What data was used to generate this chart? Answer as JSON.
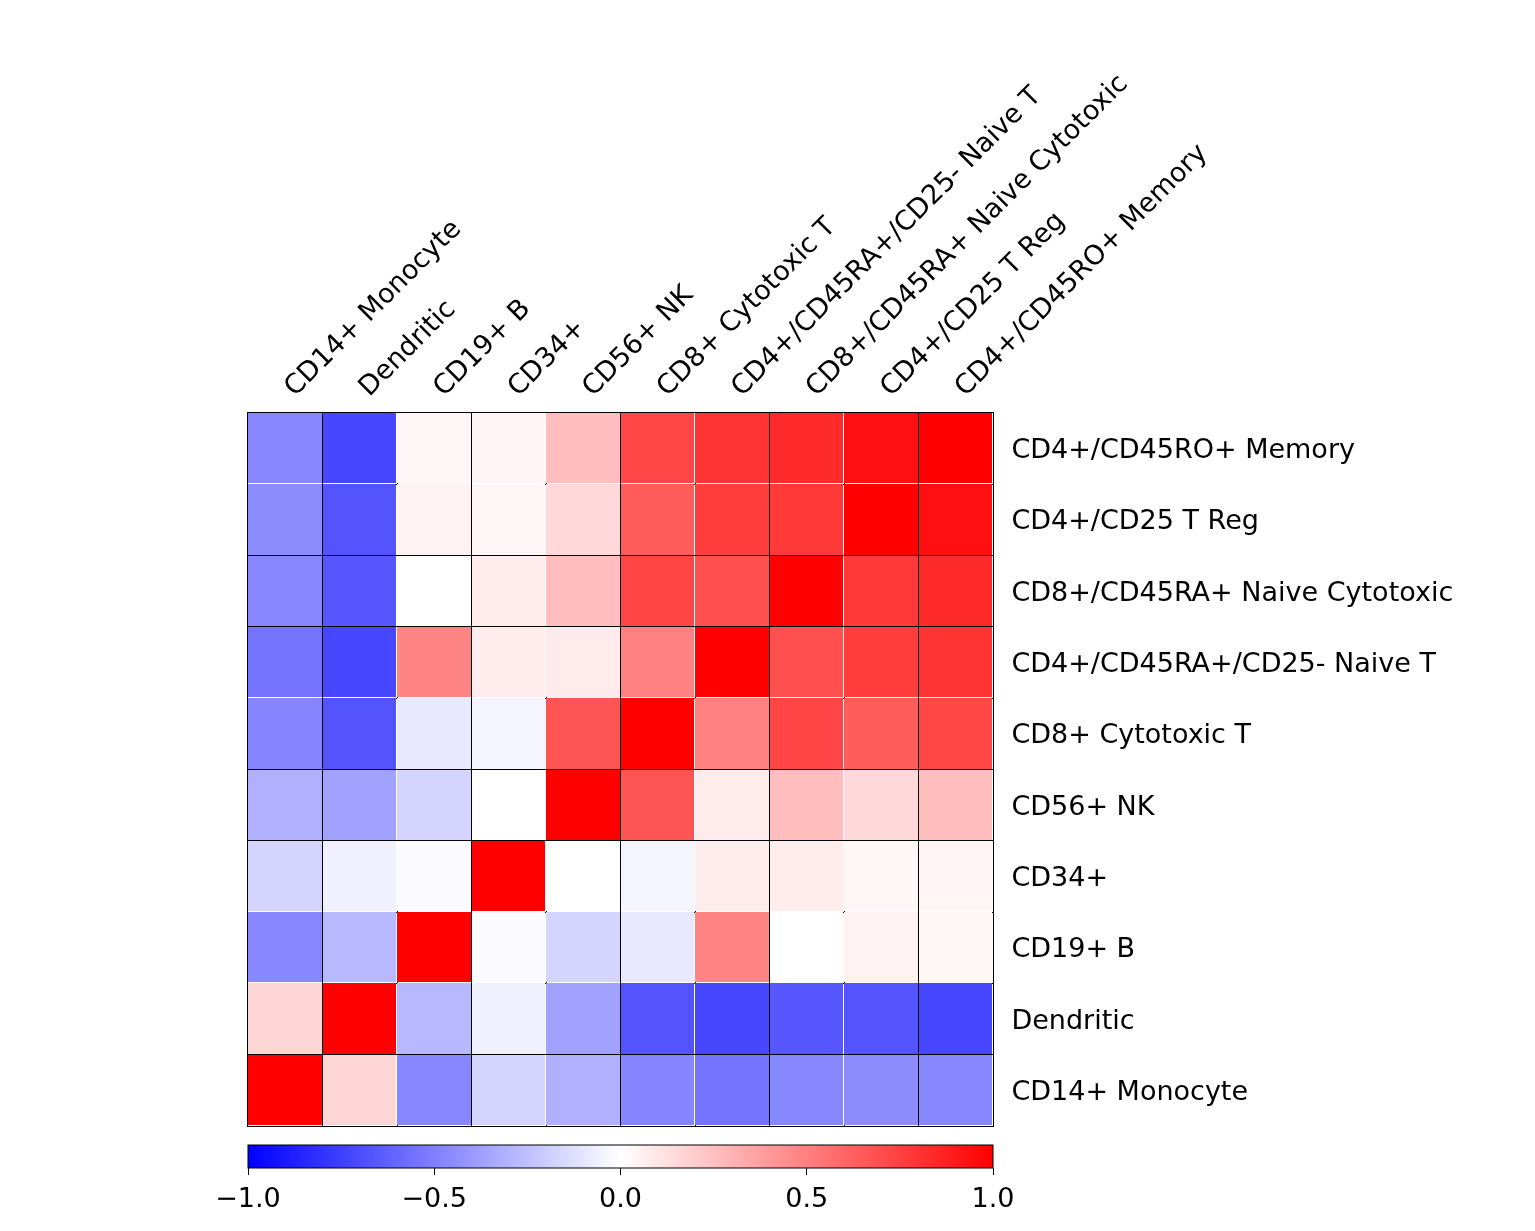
{
  "chart_data": {
    "type": "heatmap",
    "categories": [
      "CD14+ Monocyte",
      "Dendritic",
      "CD19+ B",
      "CD34+",
      "CD56+ NK",
      "CD8+ Cytotoxic T",
      "CD4+/CD45RA+/CD25- Naive T",
      "CD8+/CD45RA+ Naive Cytotoxic",
      "CD4+/CD25 T Reg",
      "CD4+/CD45RO+ Memory"
    ],
    "y_categories": [
      "CD4+/CD45RO+ Memory",
      "CD4+/CD25 T Reg",
      "CD8+/CD45RA+ Naive Cytotoxic",
      "CD4+/CD45RA+/CD25- Naive T",
      "CD8+ Cytotoxic T",
      "CD56+ NK",
      "CD34+",
      "CD19+ B",
      "Dendritic",
      "CD14+ Monocyte"
    ],
    "cells": [
      [
        -0.47,
        -0.72,
        0.03,
        0.04,
        0.26,
        0.72,
        0.8,
        0.83,
        0.94,
        1
      ],
      [
        -0.45,
        -0.67,
        0.05,
        0.03,
        0.15,
        0.64,
        0.76,
        0.78,
        1,
        0.94
      ],
      [
        -0.47,
        -0.66,
        0.0,
        0.07,
        0.26,
        0.73,
        0.69,
        1,
        0.78,
        0.83
      ],
      [
        -0.55,
        -0.72,
        0.48,
        0.07,
        0.08,
        0.5,
        1,
        0.69,
        0.76,
        0.8
      ],
      [
        -0.48,
        -0.67,
        -0.09,
        -0.04,
        0.67,
        1,
        0.5,
        0.73,
        0.64,
        0.72
      ],
      [
        -0.31,
        -0.37,
        -0.17,
        0.0,
        1,
        0.67,
        0.08,
        0.26,
        0.15,
        0.26
      ],
      [
        -0.17,
        -0.06,
        -0.02,
        1,
        0.0,
        -0.04,
        0.07,
        0.07,
        0.03,
        0.04
      ],
      [
        -0.47,
        -0.28,
        1,
        -0.02,
        -0.17,
        -0.09,
        0.48,
        0.0,
        0.05,
        0.03
      ],
      [
        0.16,
        1,
        -0.28,
        -0.06,
        -0.37,
        -0.67,
        -0.72,
        -0.66,
        -0.67,
        -0.72
      ],
      [
        1,
        0.16,
        -0.47,
        -0.17,
        -0.31,
        -0.48,
        -0.55,
        -0.47,
        -0.45,
        -0.47
      ]
    ],
    "clim": [
      -1,
      1
    ],
    "cticks": [
      {
        "value": -1,
        "label": "−1.0"
      },
      {
        "value": -0.5,
        "label": "−0.5"
      },
      {
        "value": 0,
        "label": "0.0"
      },
      {
        "value": 0.5,
        "label": "0.5"
      },
      {
        "value": 1,
        "label": "1.0"
      }
    ],
    "colors": [
      "#0000ff",
      "#ffffff",
      "#ff0000"
    ]
  }
}
